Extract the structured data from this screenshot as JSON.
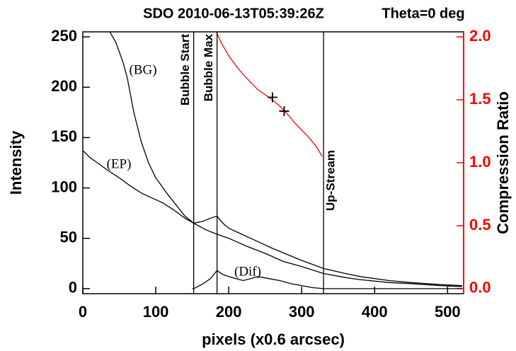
{
  "chart_data": {
    "type": "line",
    "title": "SDO 2010-06-13T05:39:26Z",
    "subtitle": "Theta=0 deg",
    "xlabel": "pixels (x0.6 arcsec)",
    "ylabel": "Intensity",
    "y2label": "Compression Ratio",
    "xlim": [
      0,
      522
    ],
    "ylim": [
      -5,
      255
    ],
    "y2lim": [
      -0.04,
      2.04
    ],
    "xticks": [
      0,
      100,
      200,
      300,
      400,
      500
    ],
    "yticks": [
      0,
      50,
      100,
      150,
      200,
      250
    ],
    "y2ticks": [
      {
        "value": 0,
        "label": "0.0"
      },
      0.5,
      {
        "value": 1,
        "label": "1.0"
      },
      1.5,
      {
        "value": 2,
        "label": "2.0"
      }
    ],
    "y2color": "#ff0000",
    "series": [
      {
        "name": "(BG)",
        "color": "#000000",
        "x": [
          37,
          45,
          55,
          61,
          70,
          80,
          90,
          100,
          115,
          129,
          140,
          152,
          170,
          184,
          200,
          225,
          250,
          275,
          300,
          330,
          360,
          380,
          420,
          450,
          490,
          520
        ],
        "values": [
          255,
          245,
          225,
          209,
          175,
          146,
          125,
          110,
          95,
          82,
          72,
          65,
          58,
          54,
          50,
          42,
          35,
          27,
          22,
          15,
          11,
          9,
          6,
          5,
          3,
          2
        ]
      },
      {
        "name": "(EP)",
        "color": "#000000",
        "x": [
          0,
          10,
          20,
          35,
          50,
          65,
          80,
          95,
          110,
          125,
          140,
          152,
          165,
          175,
          184,
          192,
          200,
          215,
          230,
          245,
          260,
          280,
          300,
          330,
          360,
          380,
          420,
          450,
          490,
          520
        ],
        "values": [
          137,
          130,
          125,
          117,
          110,
          102,
          95,
          90,
          85,
          78,
          70,
          65,
          67,
          70,
          72,
          65,
          60,
          55,
          50,
          45,
          40,
          34,
          28,
          20,
          15,
          12,
          8,
          6,
          4,
          3
        ]
      },
      {
        "name": "(Dif)",
        "color": "#000000",
        "x": [
          150,
          152,
          160,
          165,
          175,
          184,
          192,
          200,
          210,
          220,
          230,
          240,
          255,
          270,
          285,
          300,
          315,
          330,
          380,
          450,
          520
        ],
        "values": [
          0,
          0,
          3,
          5,
          10,
          18,
          14,
          12,
          10,
          8,
          10,
          12,
          10,
          8,
          5,
          3,
          1,
          0,
          0,
          0,
          0
        ]
      },
      {
        "color": "#ff0000",
        "axis": "y2",
        "x": [
          183,
          190,
          200,
          210,
          220,
          230,
          240,
          250,
          260,
          270,
          275,
          283,
          290,
          300,
          310,
          320,
          328
        ],
        "values": [
          2.04,
          1.95,
          1.85,
          1.77,
          1.7,
          1.64,
          1.58,
          1.54,
          1.5,
          1.45,
          1.42,
          1.37,
          1.32,
          1.26,
          1.2,
          1.13,
          1.05
        ]
      },
      {
        "type": "scatter",
        "color": "#000000",
        "axis": "y2",
        "x": [
          260,
          276
        ],
        "values": [
          1.52,
          1.41
        ]
      }
    ],
    "vlines": [
      {
        "x": 152,
        "label": "Bubble Start"
      },
      {
        "x": 184,
        "label": "Bubble Max"
      },
      {
        "x": 330,
        "label": "Up-Stream"
      }
    ]
  }
}
